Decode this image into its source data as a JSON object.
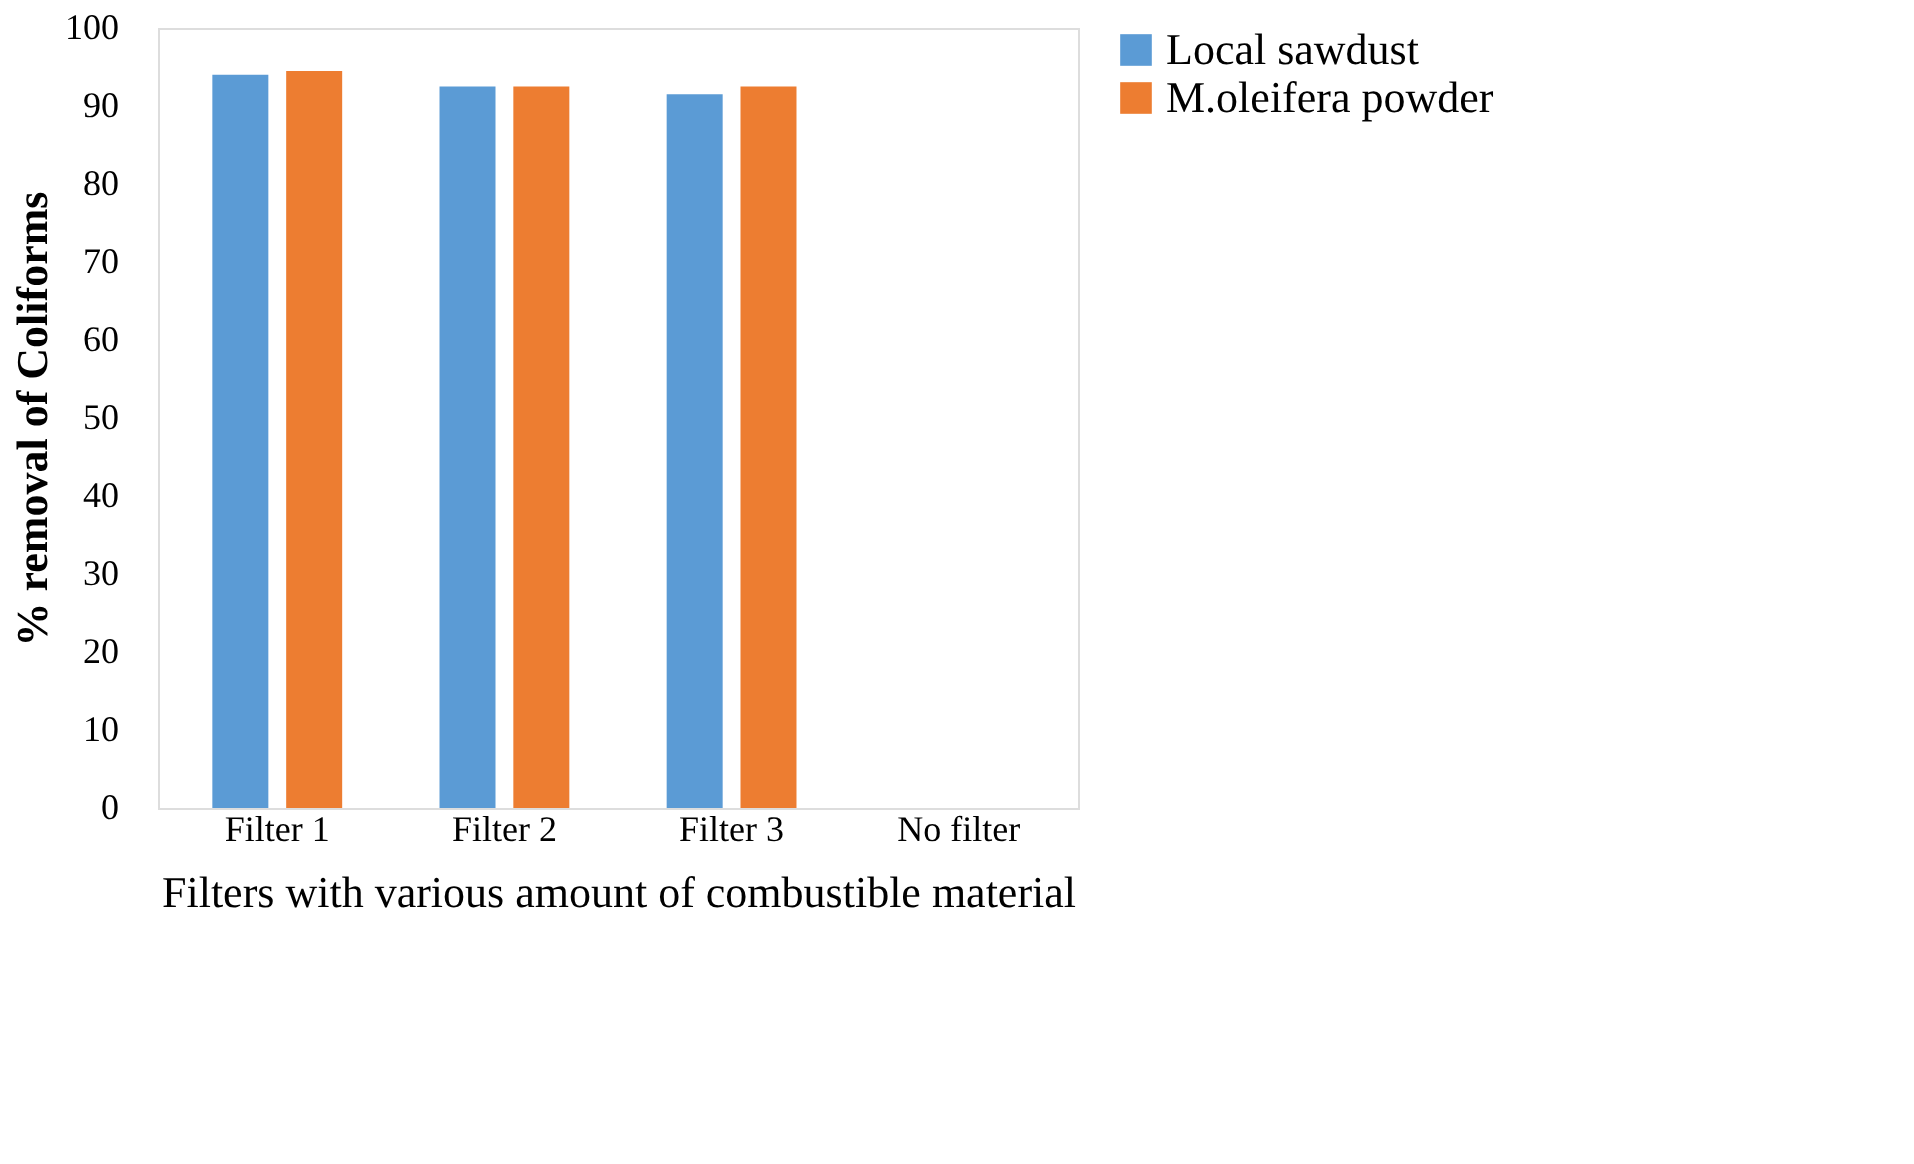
{
  "chart_data": {
    "type": "bar",
    "xlabel": "Filters with various amount of combustible material",
    "ylabel": "% removal of Coliforms",
    "categories": [
      "Filter 1",
      "Filter 2",
      "Filter 3",
      "No filter"
    ],
    "series": [
      {
        "name": "Local sawdust",
        "color": "#5b9bd5",
        "values": [
          94,
          92.5,
          91.5,
          0
        ]
      },
      {
        "name": "M.oleifera powder",
        "color": "#ed7d31",
        "values": [
          94.5,
          92.5,
          92.5,
          0
        ]
      }
    ],
    "ylim": [
      0,
      100
    ],
    "yticks": [
      0,
      10,
      20,
      30,
      40,
      50,
      60,
      70,
      80,
      90,
      100
    ],
    "grid": false,
    "legend": "right"
  }
}
